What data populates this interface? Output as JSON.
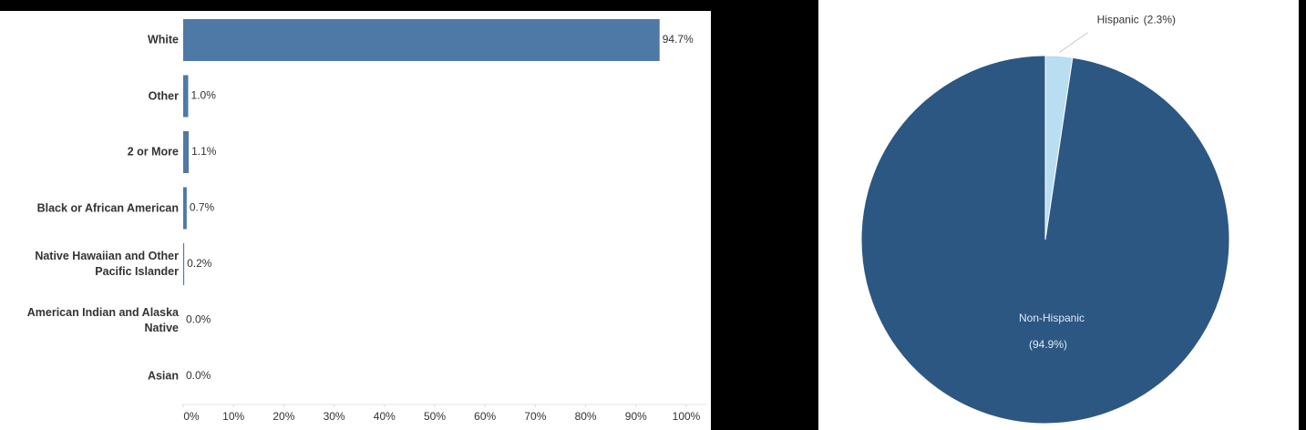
{
  "chart_data": [
    {
      "type": "hbar",
      "categories": [
        "White",
        "Other",
        "2 or More",
        "Black or African American",
        "Native Hawaiian and Other Pacific Islander",
        "American Indian and Alaska Native",
        "Asian"
      ],
      "values": [
        94.7,
        1.0,
        1.1,
        0.7,
        0.2,
        0.0,
        0.0
      ],
      "value_labels": [
        "94.7%",
        "1.0%",
        "1.1%",
        "0.7%",
        "0.2%",
        "0.0%",
        "0.0%"
      ],
      "color": "#4e79a7",
      "xlim": [
        0,
        100
      ],
      "xticks": [
        {
          "value": 0,
          "label": "0%"
        },
        {
          "value": 10,
          "label": "10%"
        },
        {
          "value": 20,
          "label": "20%"
        },
        {
          "value": 30,
          "label": "30%"
        },
        {
          "value": 40,
          "label": "40%"
        },
        {
          "value": 50,
          "label": "50%"
        },
        {
          "value": 60,
          "label": "60%"
        },
        {
          "value": 70,
          "label": "70%"
        },
        {
          "value": 80,
          "label": "80%"
        },
        {
          "value": 90,
          "label": "90%"
        },
        {
          "value": 100,
          "label": "100%"
        }
      ]
    },
    {
      "type": "pie",
      "categories": [
        "Hispanic",
        "Non-Hispanic"
      ],
      "values": [
        2.3,
        94.9
      ],
      "value_labels": [
        "(2.3%)",
        "(94.9%)"
      ],
      "colors": [
        "#b9ddf1",
        "#2c5783"
      ]
    }
  ]
}
